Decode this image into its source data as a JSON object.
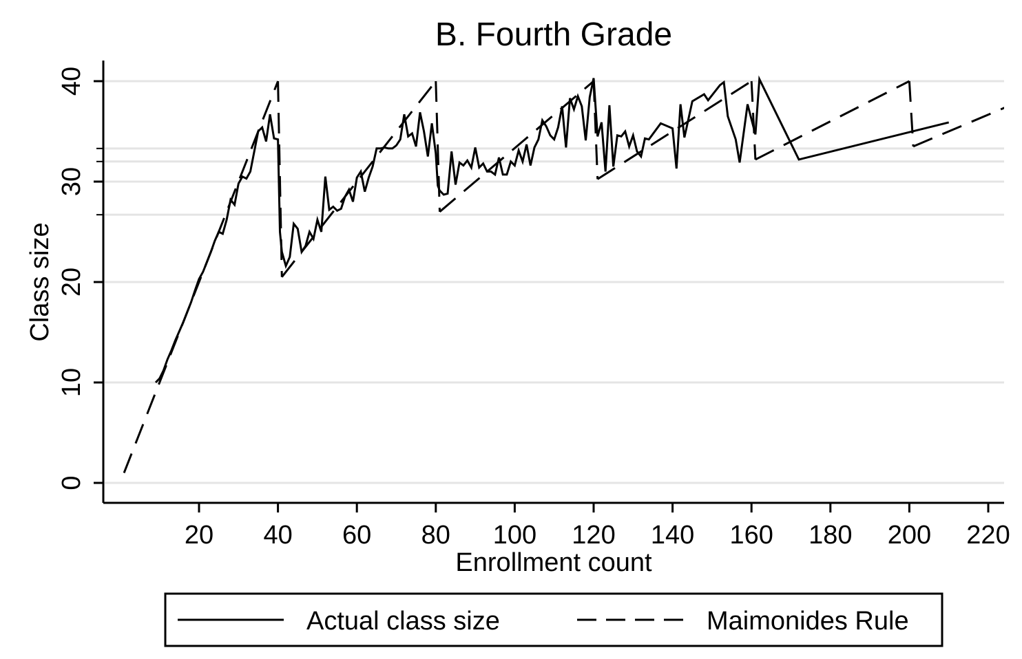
{
  "chart_data": {
    "type": "line",
    "title": "B. Fourth Grade",
    "xlabel": "Enrollment count",
    "ylabel": "Class size",
    "xlim": [
      0,
      222
    ],
    "ylim": [
      -2,
      42
    ],
    "x_ticks": [
      20,
      40,
      60,
      80,
      100,
      120,
      140,
      160,
      180,
      200,
      220
    ],
    "x_tick_labels": [
      "20",
      "40",
      "60",
      "80",
      "100",
      "120",
      "140",
      "160",
      "180",
      "200",
      "220"
    ],
    "y_ticks": [
      0,
      10,
      20,
      30,
      40
    ],
    "y_tick_labels": [
      "0",
      "10",
      "20",
      "30",
      "40"
    ],
    "gridlines_y": [
      0,
      10,
      20,
      26.7,
      30,
      32,
      33.3,
      40
    ],
    "grid": true,
    "legend_placement": "bottom",
    "legend": [
      "Actual class size",
      "Maimonides Rule"
    ],
    "series": [
      {
        "name": "Actual class size",
        "style": "solid",
        "color": "#000000",
        "points": [
          [
            9,
            10
          ],
          [
            10,
            10.4
          ],
          [
            11,
            11.2
          ],
          [
            12,
            12.3
          ],
          [
            13,
            13.2
          ],
          [
            14,
            14.2
          ],
          [
            15,
            15.1
          ],
          [
            16,
            16
          ],
          [
            17,
            17
          ],
          [
            18,
            18
          ],
          [
            19,
            19.2
          ],
          [
            20,
            20.3
          ],
          [
            21,
            21
          ],
          [
            22,
            22
          ],
          [
            23,
            23
          ],
          [
            24,
            24.1
          ],
          [
            25,
            25
          ],
          [
            26,
            24.8
          ],
          [
            27,
            26.2
          ],
          [
            28,
            28.2
          ],
          [
            29,
            27.7
          ],
          [
            30,
            29.8
          ],
          [
            31,
            30.5
          ],
          [
            32,
            30.3
          ],
          [
            33,
            31
          ],
          [
            34,
            33
          ],
          [
            35,
            35
          ],
          [
            36,
            35.4
          ],
          [
            37,
            34
          ],
          [
            38,
            36.7
          ],
          [
            39,
            34.3
          ],
          [
            40,
            34.2
          ],
          [
            40.5,
            25
          ],
          [
            41,
            23
          ],
          [
            42,
            21.6
          ],
          [
            43,
            22.5
          ],
          [
            44,
            25.8
          ],
          [
            45,
            25.3
          ],
          [
            46,
            23
          ],
          [
            47,
            23.6
          ],
          [
            48,
            25
          ],
          [
            49,
            24.3
          ],
          [
            50,
            26.2
          ],
          [
            51,
            25
          ],
          [
            52,
            30.5
          ],
          [
            53,
            27.2
          ],
          [
            54,
            27.5
          ],
          [
            55,
            27.1
          ],
          [
            56,
            27.3
          ],
          [
            57,
            28.5
          ],
          [
            58,
            29.2
          ],
          [
            59,
            28
          ],
          [
            60,
            30.4
          ],
          [
            61,
            31
          ],
          [
            62,
            29
          ],
          [
            63,
            30.4
          ],
          [
            64,
            31.5
          ],
          [
            65,
            33.3
          ],
          [
            66,
            33.3
          ],
          [
            67,
            33.4
          ],
          [
            68,
            33.3
          ],
          [
            69,
            33.3
          ],
          [
            70,
            33.6
          ],
          [
            71,
            34.2
          ],
          [
            72,
            36.7
          ],
          [
            73,
            34.5
          ],
          [
            74,
            34.8
          ],
          [
            75,
            33.5
          ],
          [
            76,
            36.9
          ],
          [
            77,
            35
          ],
          [
            78,
            32.5
          ],
          [
            79,
            35.8
          ],
          [
            80,
            32.8
          ],
          [
            80.5,
            29.6
          ],
          [
            81,
            29.1
          ],
          [
            82,
            28.7
          ],
          [
            83,
            28.8
          ],
          [
            84,
            33
          ],
          [
            85,
            29.7
          ],
          [
            86,
            31.9
          ],
          [
            87,
            31.6
          ],
          [
            88,
            32.1
          ],
          [
            89,
            31.4
          ],
          [
            90,
            33.4
          ],
          [
            91,
            31.4
          ],
          [
            92,
            31.8
          ],
          [
            93,
            31
          ],
          [
            94,
            31
          ],
          [
            95,
            30.7
          ],
          [
            96,
            32.4
          ],
          [
            97,
            30.7
          ],
          [
            98,
            30.7
          ],
          [
            99,
            32
          ],
          [
            100,
            31.6
          ],
          [
            101,
            33.1
          ],
          [
            102,
            32
          ],
          [
            103,
            33.7
          ],
          [
            104,
            31.6
          ],
          [
            105,
            33.4
          ],
          [
            106,
            34.2
          ],
          [
            107,
            36.1
          ],
          [
            108,
            35.5
          ],
          [
            109,
            34.6
          ],
          [
            110,
            34.2
          ],
          [
            111,
            35.4
          ],
          [
            112,
            37.5
          ],
          [
            113,
            33.4
          ],
          [
            114,
            38.3
          ],
          [
            115,
            37.2
          ],
          [
            116,
            38.5
          ],
          [
            117,
            37.5
          ],
          [
            118,
            34.1
          ],
          [
            119,
            38.4
          ],
          [
            120,
            40.3
          ],
          [
            121,
            34.5
          ],
          [
            122,
            35.9
          ],
          [
            123,
            31
          ],
          [
            124,
            37.6
          ],
          [
            125,
            31.5
          ],
          [
            126,
            34.6
          ],
          [
            127,
            34.5
          ],
          [
            128,
            35
          ],
          [
            129,
            33.5
          ],
          [
            130,
            34.6
          ],
          [
            131,
            33
          ],
          [
            132,
            32.5
          ],
          [
            133,
            34.3
          ],
          [
            134,
            34.2
          ],
          [
            137,
            35.8
          ],
          [
            140,
            35.3
          ],
          [
            141,
            31.3
          ],
          [
            142,
            37.7
          ],
          [
            143,
            34.4
          ],
          [
            145,
            38
          ],
          [
            148,
            38.7
          ],
          [
            149,
            38.1
          ],
          [
            152,
            39.6
          ],
          [
            153,
            39.9
          ],
          [
            154,
            36.5
          ],
          [
            156,
            34.2
          ],
          [
            157,
            31.9
          ],
          [
            159,
            37.7
          ],
          [
            161,
            34.7
          ],
          [
            162,
            40.2
          ],
          [
            172,
            32.2
          ],
          [
            210,
            35.9
          ]
        ]
      },
      {
        "name": "Maimonides Rule",
        "style": "dashed",
        "color": "#000000",
        "segments": [
          [
            [
              1,
              1
            ],
            [
              40,
              40
            ]
          ],
          [
            [
              40,
              40
            ],
            [
              41,
              20.5
            ]
          ],
          [
            [
              41,
              20.5
            ],
            [
              80,
              40
            ]
          ],
          [
            [
              80,
              40
            ],
            [
              81,
              27
            ]
          ],
          [
            [
              81,
              27
            ],
            [
              120,
              40
            ]
          ],
          [
            [
              120,
              40
            ],
            [
              121,
              30.25
            ]
          ],
          [
            [
              121,
              30.25
            ],
            [
              160,
              40
            ]
          ],
          [
            [
              160,
              40
            ],
            [
              161,
              32.2
            ]
          ],
          [
            [
              161,
              32.2
            ],
            [
              200,
              40
            ]
          ],
          [
            [
              200,
              40
            ],
            [
              201,
              33.5
            ]
          ],
          [
            [
              201,
              33.5
            ],
            [
              240,
              40
            ]
          ]
        ]
      }
    ]
  }
}
